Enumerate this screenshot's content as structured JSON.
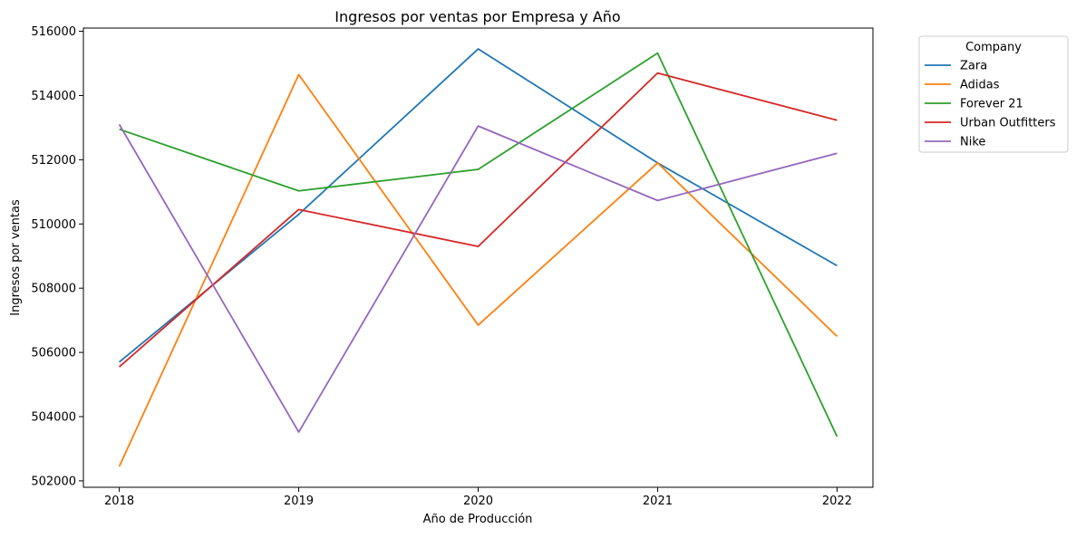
{
  "chart_data": {
    "type": "line",
    "title": "Ingresos por ventas por Empresa y Año",
    "xlabel": "Año de Producción",
    "ylabel": "Ingresos por ventas",
    "x": [
      2018,
      2019,
      2020,
      2021,
      2022
    ],
    "xlim": [
      2017.8,
      2022.2
    ],
    "ylim": [
      501800,
      516100
    ],
    "yticks": [
      502000,
      504000,
      506000,
      508000,
      510000,
      512000,
      514000,
      516000
    ],
    "grid": false,
    "legend": {
      "title": "Company",
      "placement": "outside-top-right"
    },
    "series": [
      {
        "name": "Zara",
        "color": "#1f77b4",
        "values": [
          505700,
          510300,
          515450,
          511900,
          508700
        ]
      },
      {
        "name": "Adidas",
        "color": "#ff7f0e",
        "values": [
          502450,
          514650,
          506850,
          511900,
          506500
        ]
      },
      {
        "name": "Forever 21",
        "color": "#2ca02c",
        "values": [
          512950,
          511030,
          511700,
          515320,
          503380
        ]
      },
      {
        "name": "Urban Outfitters",
        "color": "#d62728",
        "values": [
          505550,
          510450,
          509300,
          514700,
          513230
        ]
      },
      {
        "name": "Nike",
        "color": "#9467bd",
        "values": [
          513100,
          503520,
          513050,
          510730,
          512200
        ]
      }
    ]
  }
}
